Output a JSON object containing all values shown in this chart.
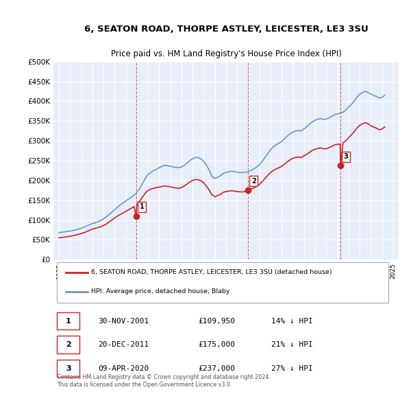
{
  "title": "6, SEATON ROAD, THORPE ASTLEY, LEICESTER, LE3 3SU",
  "subtitle": "Price paid vs. HM Land Registry's House Price Index (HPI)",
  "bg_color": "#e8eef8",
  "plot_bg_color": "#e8eef8",
  "ylim": [
    0,
    500000
  ],
  "yticks": [
    0,
    50000,
    100000,
    150000,
    200000,
    250000,
    300000,
    350000,
    400000,
    450000,
    500000
  ],
  "ytick_labels": [
    "£0",
    "£50K",
    "£100K",
    "£150K",
    "£200K",
    "£250K",
    "£300K",
    "£350K",
    "£400K",
    "£450K",
    "£500K"
  ],
  "hpi_color": "#6699cc",
  "price_color": "#cc2222",
  "vline_color": "#cc2222",
  "transactions": [
    {
      "date_num": 2001.92,
      "price": 109950,
      "label": "1"
    },
    {
      "date_num": 2011.97,
      "price": 175000,
      "label": "2"
    },
    {
      "date_num": 2020.27,
      "price": 237000,
      "label": "3"
    }
  ],
  "legend_label_price": "6, SEATON ROAD, THORPE ASTLEY, LEICESTER, LE3 3SU (detached house)",
  "legend_label_hpi": "HPI: Average price, detached house, Blaby",
  "table_rows": [
    {
      "num": "1",
      "date": "30-NOV-2001",
      "price": "£109,950",
      "pct": "14% ↓ HPI"
    },
    {
      "num": "2",
      "date": "20-DEC-2011",
      "price": "£175,000",
      "pct": "21% ↓ HPI"
    },
    {
      "num": "3",
      "date": "09-APR-2020",
      "price": "£237,000",
      "pct": "27% ↓ HPI"
    }
  ],
  "footer": "Contains HM Land Registry data © Crown copyright and database right 2024.\nThis data is licensed under the Open Government Licence v3.0.",
  "hpi_data": {
    "years": [
      1995.0,
      1995.25,
      1995.5,
      1995.75,
      1996.0,
      1996.25,
      1996.5,
      1996.75,
      1997.0,
      1997.25,
      1997.5,
      1997.75,
      1998.0,
      1998.25,
      1998.5,
      1998.75,
      1999.0,
      1999.25,
      1999.5,
      1999.75,
      2000.0,
      2000.25,
      2000.5,
      2000.75,
      2001.0,
      2001.25,
      2001.5,
      2001.75,
      2002.0,
      2002.25,
      2002.5,
      2002.75,
      2003.0,
      2003.25,
      2003.5,
      2003.75,
      2004.0,
      2004.25,
      2004.5,
      2004.75,
      2005.0,
      2005.25,
      2005.5,
      2005.75,
      2006.0,
      2006.25,
      2006.5,
      2006.75,
      2007.0,
      2007.25,
      2007.5,
      2007.75,
      2008.0,
      2008.25,
      2008.5,
      2008.75,
      2009.0,
      2009.25,
      2009.5,
      2009.75,
      2010.0,
      2010.25,
      2010.5,
      2010.75,
      2011.0,
      2011.25,
      2011.5,
      2011.75,
      2012.0,
      2012.25,
      2012.5,
      2012.75,
      2013.0,
      2013.25,
      2013.5,
      2013.75,
      2014.0,
      2014.25,
      2014.5,
      2014.75,
      2015.0,
      2015.25,
      2015.5,
      2015.75,
      2016.0,
      2016.25,
      2016.5,
      2016.75,
      2017.0,
      2017.25,
      2017.5,
      2017.75,
      2018.0,
      2018.25,
      2018.5,
      2018.75,
      2019.0,
      2019.25,
      2019.5,
      2019.75,
      2020.0,
      2020.25,
      2020.5,
      2020.75,
      2021.0,
      2021.25,
      2021.5,
      2021.75,
      2022.0,
      2022.25,
      2022.5,
      2022.75,
      2023.0,
      2023.25,
      2023.5,
      2023.75,
      2024.0,
      2024.25
    ],
    "values": [
      68000,
      69000,
      70000,
      71000,
      72000,
      73500,
      75000,
      77000,
      79000,
      82000,
      85000,
      88000,
      91000,
      93000,
      96000,
      99000,
      103000,
      108000,
      114000,
      120000,
      126000,
      132000,
      138000,
      143000,
      148000,
      153000,
      158000,
      163000,
      170000,
      180000,
      192000,
      205000,
      215000,
      220000,
      225000,
      228000,
      232000,
      236000,
      238000,
      237000,
      236000,
      234000,
      233000,
      232000,
      234000,
      238000,
      244000,
      250000,
      255000,
      258000,
      258000,
      254000,
      248000,
      238000,
      225000,
      210000,
      205000,
      208000,
      212000,
      218000,
      220000,
      222000,
      223000,
      222000,
      221000,
      220000,
      220000,
      221000,
      222000,
      225000,
      229000,
      234000,
      240000,
      248000,
      258000,
      268000,
      278000,
      285000,
      290000,
      294000,
      298000,
      305000,
      312000,
      318000,
      322000,
      325000,
      326000,
      325000,
      330000,
      336000,
      342000,
      348000,
      352000,
      355000,
      356000,
      354000,
      355000,
      358000,
      362000,
      366000,
      368000,
      370000,
      372000,
      378000,
      385000,
      392000,
      400000,
      410000,
      418000,
      422000,
      425000,
      422000,
      418000,
      415000,
      412000,
      408000,
      410000,
      415000
    ]
  },
  "price_data": {
    "years": [
      1995.0,
      1995.25,
      1995.5,
      1995.75,
      1996.0,
      1996.25,
      1996.5,
      1996.75,
      1997.0,
      1997.25,
      1997.5,
      1997.75,
      1998.0,
      1998.25,
      1998.5,
      1998.75,
      1999.0,
      1999.25,
      1999.5,
      1999.75,
      2000.0,
      2000.25,
      2000.5,
      2000.75,
      2001.0,
      2001.25,
      2001.5,
      2001.75,
      2001.92,
      2002.0,
      2002.25,
      2002.5,
      2002.75,
      2003.0,
      2003.25,
      2003.5,
      2003.75,
      2004.0,
      2004.25,
      2004.5,
      2004.75,
      2005.0,
      2005.25,
      2005.5,
      2005.75,
      2006.0,
      2006.25,
      2006.5,
      2006.75,
      2007.0,
      2007.25,
      2007.5,
      2007.75,
      2008.0,
      2008.25,
      2008.5,
      2008.75,
      2009.0,
      2009.25,
      2009.5,
      2009.75,
      2010.0,
      2010.25,
      2010.5,
      2010.75,
      2011.0,
      2011.25,
      2011.5,
      2011.75,
      2011.97,
      2012.0,
      2012.25,
      2012.5,
      2012.75,
      2013.0,
      2013.25,
      2013.5,
      2013.75,
      2014.0,
      2014.25,
      2014.5,
      2014.75,
      2015.0,
      2015.25,
      2015.5,
      2015.75,
      2016.0,
      2016.25,
      2016.5,
      2016.75,
      2017.0,
      2017.25,
      2017.5,
      2017.75,
      2018.0,
      2018.25,
      2018.5,
      2018.75,
      2019.0,
      2019.25,
      2019.5,
      2019.75,
      2020.0,
      2020.25,
      2020.27,
      2020.5,
      2020.75,
      2021.0,
      2021.25,
      2021.5,
      2021.75,
      2022.0,
      2022.25,
      2022.5,
      2022.75,
      2023.0,
      2023.25,
      2023.5,
      2023.75,
      2024.0,
      2024.25
    ],
    "values": [
      55000,
      56000,
      57000,
      58000,
      59000,
      60500,
      62000,
      64000,
      66000,
      68000,
      71000,
      74000,
      77000,
      79000,
      81000,
      83000,
      86000,
      90000,
      95000,
      100000,
      105000,
      110000,
      114000,
      118000,
      122000,
      126000,
      130000,
      134000,
      109950,
      140000,
      148000,
      158000,
      168000,
      175000,
      178000,
      180000,
      182000,
      183000,
      185000,
      186000,
      185000,
      184000,
      182000,
      181000,
      180000,
      182000,
      186000,
      191000,
      196000,
      200000,
      202000,
      202000,
      199000,
      194000,
      185000,
      175000,
      163000,
      159000,
      162000,
      165000,
      170000,
      172000,
      173000,
      174000,
      173000,
      172000,
      171000,
      171000,
      172000,
      175000,
      175000,
      178000,
      181000,
      185000,
      190000,
      197000,
      205000,
      213000,
      220000,
      225000,
      229000,
      232000,
      236000,
      241000,
      247000,
      252000,
      256000,
      258000,
      259000,
      258000,
      262000,
      266000,
      271000,
      276000,
      279000,
      281000,
      282000,
      280000,
      280000,
      283000,
      286000,
      290000,
      291000,
      292000,
      237000,
      295000,
      300000,
      308000,
      315000,
      323000,
      332000,
      339000,
      343000,
      346000,
      343000,
      338000,
      335000,
      332000,
      328000,
      330000,
      335000
    ]
  }
}
